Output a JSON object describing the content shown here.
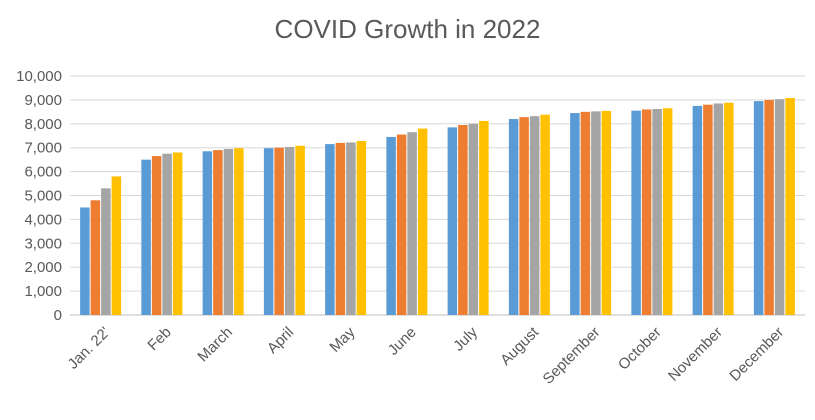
{
  "chart_data": {
    "type": "bar",
    "title": "COVID Growth in 2022",
    "xlabel": "",
    "ylabel": "",
    "ylim": [
      0,
      10000
    ],
    "yticks": [
      "0",
      "1,000",
      "2,000",
      "3,000",
      "4,000",
      "5,000",
      "6,000",
      "7,000",
      "8,000",
      "9,000",
      "10,000"
    ],
    "grid": true,
    "categories": [
      "Jan. 22'",
      "Feb",
      "March",
      "April",
      "May",
      "June",
      "July",
      "August",
      "September",
      "October",
      "November",
      "December"
    ],
    "series": [
      {
        "color": "#5B9BD5",
        "values": [
          4500,
          6500,
          6850,
          6980,
          7150,
          7450,
          7850,
          8200,
          8450,
          8550,
          8750,
          8950
        ]
      },
      {
        "color": "#ED7D31",
        "values": [
          4800,
          6650,
          6900,
          7000,
          7200,
          7550,
          7950,
          8280,
          8500,
          8600,
          8800,
          9000
        ]
      },
      {
        "color": "#A5A5A5",
        "values": [
          5300,
          6750,
          6950,
          7030,
          7220,
          7650,
          8000,
          8320,
          8520,
          8620,
          8850,
          9030
        ]
      },
      {
        "color": "#FFC000",
        "values": [
          5800,
          6800,
          6980,
          7080,
          7280,
          7800,
          8120,
          8380,
          8540,
          8650,
          8880,
          9080
        ]
      }
    ]
  }
}
